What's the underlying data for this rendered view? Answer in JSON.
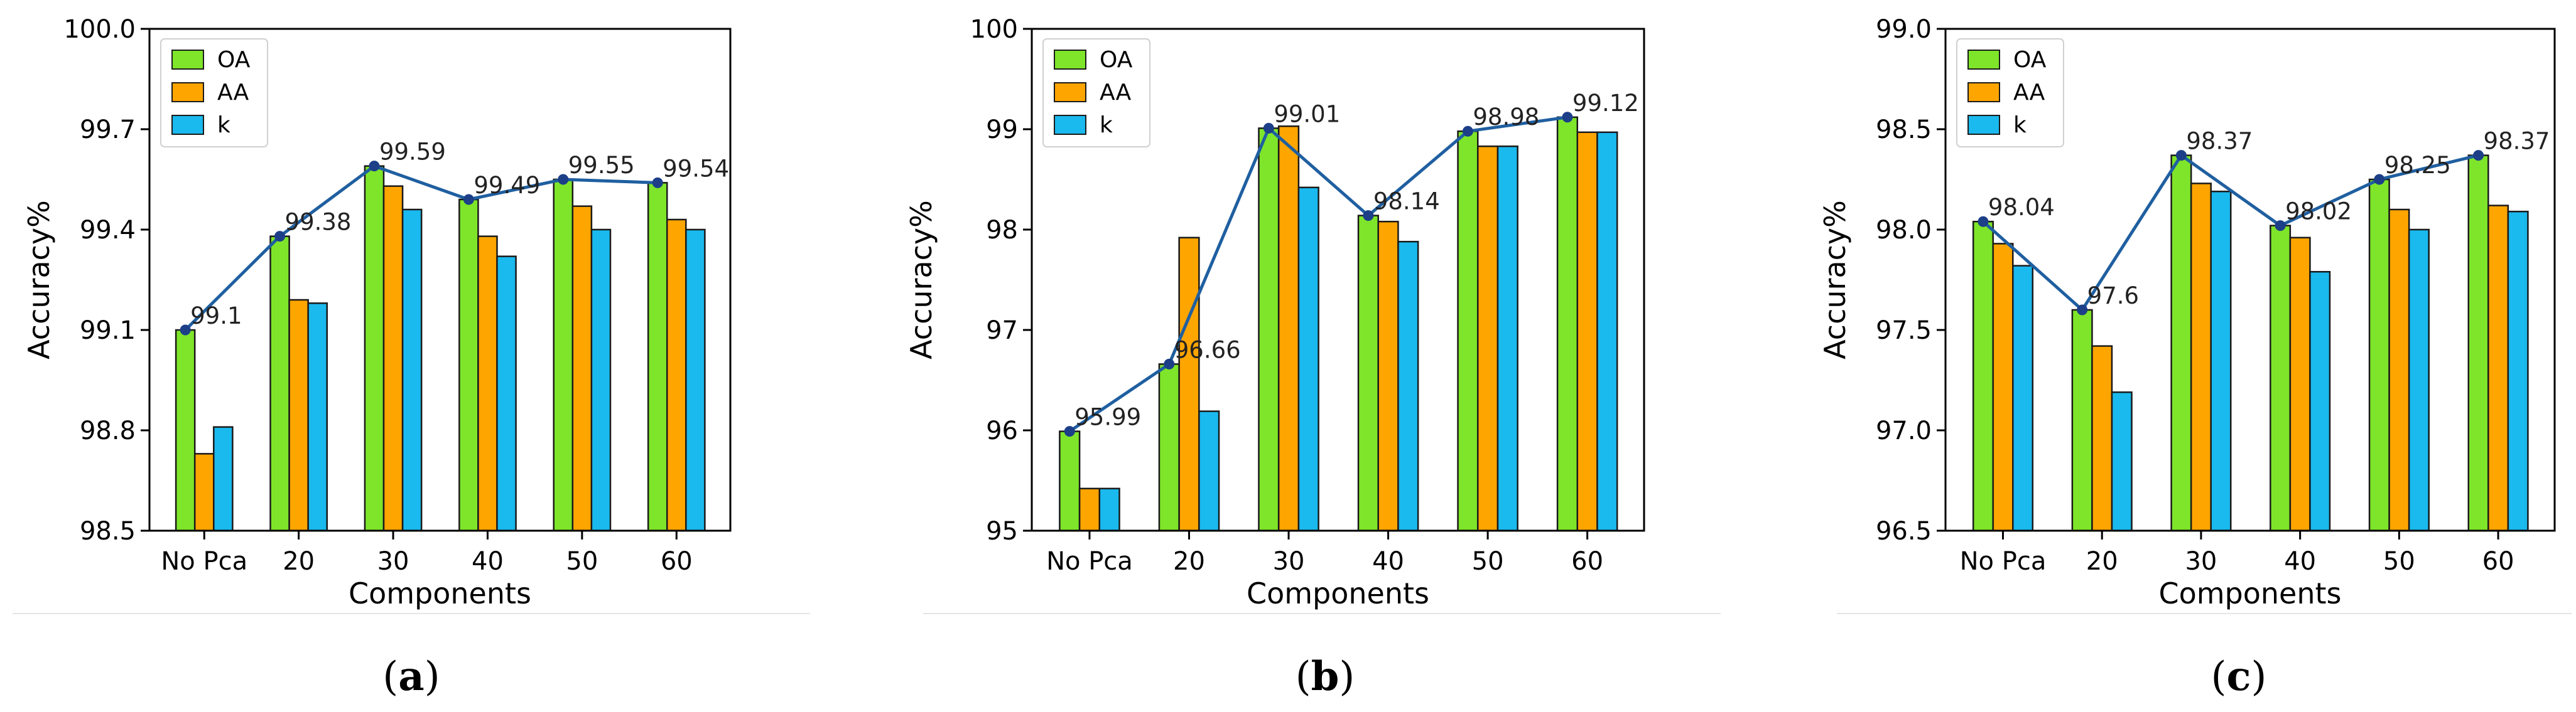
{
  "colors": {
    "OA": "#7ee52a",
    "AA": "#ffa500",
    "k": "#1ab9ee",
    "line": "#1f5fa0"
  },
  "legend": [
    "OA",
    "AA",
    "k"
  ],
  "chart_data": [
    {
      "type": "bar",
      "caption_letter": "a",
      "categories": [
        "No Pca",
        "20",
        "30",
        "40",
        "50",
        "60"
      ],
      "series": [
        {
          "name": "OA",
          "values": [
            99.1,
            99.38,
            99.59,
            99.49,
            99.55,
            99.54
          ]
        },
        {
          "name": "AA",
          "values": [
            98.73,
            99.19,
            99.53,
            99.38,
            99.47,
            99.43
          ]
        },
        {
          "name": "k",
          "values": [
            98.81,
            99.18,
            99.46,
            99.32,
            99.4,
            99.4
          ]
        }
      ],
      "line_series": {
        "name": "OA",
        "labels": [
          "99.1",
          "99.38",
          "99.59",
          "99.49",
          "99.55",
          "99.54"
        ]
      },
      "xlabel": "Components",
      "ylabel": "Accuracy%",
      "ylim": [
        98.5,
        100.0
      ],
      "yticks": [
        "98.5",
        "98.8",
        "99.1",
        "99.4",
        "99.7",
        "100.0"
      ],
      "legend_position": "top-left"
    },
    {
      "type": "bar",
      "caption_letter": "b",
      "categories": [
        "No Pca",
        "20",
        "30",
        "40",
        "50",
        "60"
      ],
      "series": [
        {
          "name": "OA",
          "values": [
            95.99,
            96.66,
            99.01,
            98.14,
            98.98,
            99.12
          ]
        },
        {
          "name": "AA",
          "values": [
            95.42,
            97.92,
            99.03,
            98.08,
            98.83,
            98.97
          ]
        },
        {
          "name": "k",
          "values": [
            95.42,
            96.19,
            98.42,
            97.88,
            98.83,
            98.97
          ]
        }
      ],
      "line_series": {
        "name": "OA",
        "labels": [
          "95.99",
          "96.66",
          "99.01",
          "98.14",
          "98.98",
          "99.12"
        ]
      },
      "xlabel": "Components",
      "ylabel": "Accuracy%",
      "ylim": [
        95,
        100
      ],
      "yticks": [
        "95",
        "96",
        "97",
        "98",
        "99",
        "100"
      ],
      "legend_position": "top-left"
    },
    {
      "type": "bar",
      "caption_letter": "c",
      "categories": [
        "No Pca",
        "20",
        "30",
        "40",
        "50",
        "60"
      ],
      "series": [
        {
          "name": "OA",
          "values": [
            98.04,
            97.6,
            98.37,
            98.02,
            98.25,
            98.37
          ]
        },
        {
          "name": "AA",
          "values": [
            97.93,
            97.42,
            98.23,
            97.96,
            98.1,
            98.12
          ]
        },
        {
          "name": "k",
          "values": [
            97.82,
            97.19,
            98.19,
            97.79,
            98.0,
            98.09
          ]
        }
      ],
      "line_series": {
        "name": "OA",
        "labels": [
          "98.04",
          "97.6",
          "98.37",
          "98.02",
          "98.25",
          "98.37"
        ]
      },
      "xlabel": "Components",
      "ylabel": "Accuracy%",
      "ylim": [
        96.5,
        99.0
      ],
      "yticks": [
        "96.5",
        "97.0",
        "97.5",
        "98.0",
        "98.5",
        "99.0"
      ],
      "legend_position": "top-left"
    }
  ]
}
